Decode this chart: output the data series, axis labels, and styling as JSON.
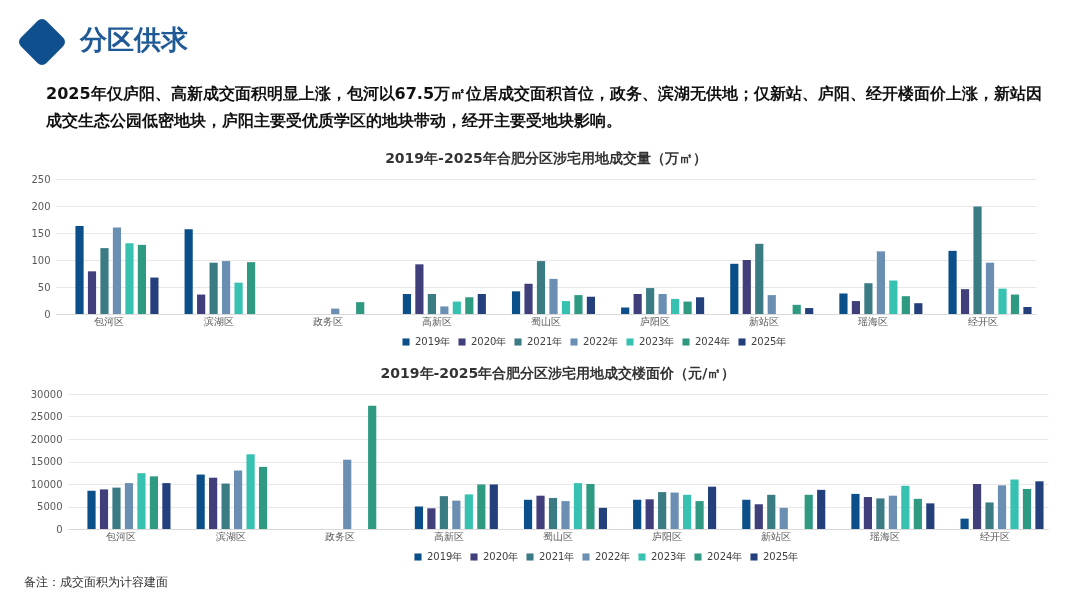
{
  "chart_data": [
    {
      "type": "other",
      "title": "分区供求",
      "subtitle": "2025年仅庐阳、高新成交面积明显上涨，包河以67.5万㎡位居成交面积首位，政务、滨湖无供地；仅新站、庐阳、经开楼面价上涨，新站因成交生态公园低密地块，庐阳主要受优质学区的地块带动，经开主要受地块影响。"
    },
    {
      "type": "bar",
      "title": "2019年-2025年合肥分区涉宅用地成交量（万㎡）",
      "categories": [
        "包河区",
        "滨湖区",
        "政务区",
        "高新区",
        "蜀山区",
        "庐阳区",
        "新站区",
        "瑶海区",
        "经开区"
      ],
      "ylim": [
        0,
        250
      ],
      "yticks": [
        0,
        50,
        100,
        150,
        200,
        250
      ],
      "grid": "y",
      "legend": "bottom",
      "series": [
        {
          "name": "2019年",
          "color": "#0b4f8a",
          "values": [
            163,
            157,
            null,
            37,
            42,
            12,
            93,
            38,
            117
          ]
        },
        {
          "name": "2020年",
          "color": "#403f7c",
          "values": [
            79,
            36,
            null,
            92,
            56,
            37,
            100,
            24,
            46
          ]
        },
        {
          "name": "2021年",
          "color": "#3b7b84",
          "values": [
            122,
            95,
            null,
            37,
            98,
            48,
            130,
            57,
            199
          ]
        },
        {
          "name": "2022年",
          "color": "#6a8fb2",
          "values": [
            160,
            98,
            10,
            14,
            65,
            37,
            35,
            116,
            95
          ]
        },
        {
          "name": "2023年",
          "color": "#36c1b1",
          "values": [
            131,
            58,
            null,
            23,
            24,
            28,
            null,
            62,
            47
          ]
        },
        {
          "name": "2024年",
          "color": "#2f9a82",
          "values": [
            128,
            96,
            22,
            31,
            35,
            23,
            17,
            33,
            36
          ]
        },
        {
          "name": "2025年",
          "color": "#24407c",
          "values": [
            67.5,
            null,
            null,
            37,
            32,
            31,
            11,
            20,
            13
          ]
        }
      ]
    },
    {
      "type": "bar",
      "title": "2019年-2025年合肥分区涉宅用地成交楼面价（元/㎡）",
      "categories": [
        "包河区",
        "滨湖区",
        "政务区",
        "高新区",
        "蜀山区",
        "庐阳区",
        "新站区",
        "瑶海区",
        "经开区"
      ],
      "ylim": [
        0,
        30000
      ],
      "yticks": [
        0,
        5000,
        10000,
        15000,
        20000,
        25000,
        30000
      ],
      "grid": "y",
      "legend": "bottom",
      "annotations": [
        "备注：成交面积为计容建面"
      ],
      "series": [
        {
          "name": "2019年",
          "color": "#0b4f8a",
          "values": [
            8500,
            12100,
            null,
            5000,
            6500,
            6500,
            6500,
            7800,
            2300
          ]
        },
        {
          "name": "2020年",
          "color": "#403f7c",
          "values": [
            8800,
            11400,
            null,
            4600,
            7400,
            6600,
            5500,
            7100,
            10000
          ]
        },
        {
          "name": "2021年",
          "color": "#3b7b84",
          "values": [
            9200,
            10100,
            null,
            7300,
            6900,
            8200,
            7600,
            6800,
            5900
          ]
        },
        {
          "name": "2022年",
          "color": "#6a8fb2",
          "values": [
            10200,
            13000,
            15400,
            6300,
            6200,
            8100,
            4700,
            7400,
            9700
          ]
        },
        {
          "name": "2023年",
          "color": "#36c1b1",
          "values": [
            12400,
            16600,
            null,
            7700,
            10200,
            7600,
            null,
            9600,
            11000
          ]
        },
        {
          "name": "2024年",
          "color": "#2f9a82",
          "values": [
            11700,
            13800,
            27400,
            9900,
            10000,
            6200,
            7600,
            6700,
            8900
          ]
        },
        {
          "name": "2025年",
          "color": "#24407c",
          "values": [
            10200,
            null,
            null,
            9900,
            4700,
            9400,
            8700,
            5700,
            10600
          ]
        }
      ]
    }
  ]
}
